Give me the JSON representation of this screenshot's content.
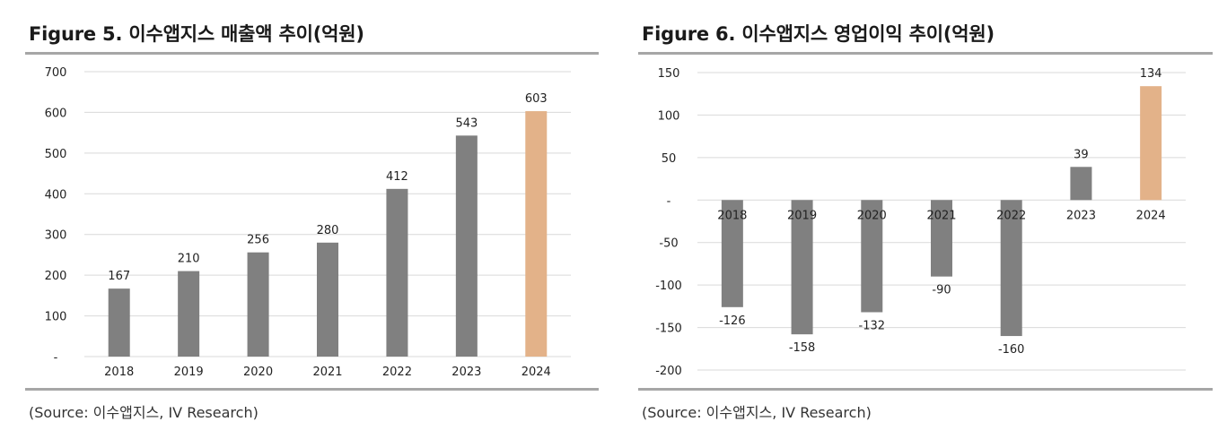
{
  "colors": {
    "bar": "#808080",
    "highlight": "#e3b289",
    "grid": "#d9d9d9",
    "rule": "#a6a6a6"
  },
  "panels": [
    {
      "title": "Figure 5. 이수앱지스 매출액 추이(억원)",
      "source": "(Source: 이수앱지스, IV Research)"
    },
    {
      "title": "Figure 6. 이수앱지스 영업이익 추이(억원)",
      "source": "(Source: 이수앱지스, IV Research)"
    }
  ],
  "chart_data": [
    {
      "type": "bar",
      "categories": [
        "2018",
        "2019",
        "2020",
        "2021",
        "2022",
        "2023",
        "2024"
      ],
      "values": [
        167,
        210,
        256,
        280,
        412,
        543,
        603
      ],
      "data_labels": [
        "167",
        "210",
        "256",
        "280",
        "412",
        "543",
        "603"
      ],
      "highlight_category": "2024",
      "ylim": [
        0,
        700
      ],
      "yticks": [
        0,
        100,
        200,
        300,
        400,
        500,
        600,
        700
      ],
      "ytick_labels": [
        "-",
        "100",
        "200",
        "300",
        "400",
        "500",
        "600",
        "700"
      ],
      "grid": true,
      "xaxis_position": "bottom",
      "xlabel": "",
      "ylabel": ""
    },
    {
      "type": "bar",
      "categories": [
        "2018",
        "2019",
        "2020",
        "2021",
        "2022",
        "2023",
        "2024"
      ],
      "values": [
        -126,
        -158,
        -132,
        -90,
        -160,
        39,
        134
      ],
      "data_labels": [
        "-126",
        "-158",
        "-132",
        "-90",
        "-160",
        "39",
        "134"
      ],
      "highlight_category": "2024",
      "ylim": [
        -200,
        150
      ],
      "yticks": [
        -200,
        -150,
        -100,
        -50,
        0,
        50,
        100,
        150
      ],
      "ytick_labels": [
        "-200",
        "-150",
        "-100",
        "-50",
        "-",
        "50",
        "100",
        "150"
      ],
      "grid": true,
      "xaxis_position": "zero",
      "xlabel": "",
      "ylabel": ""
    }
  ]
}
